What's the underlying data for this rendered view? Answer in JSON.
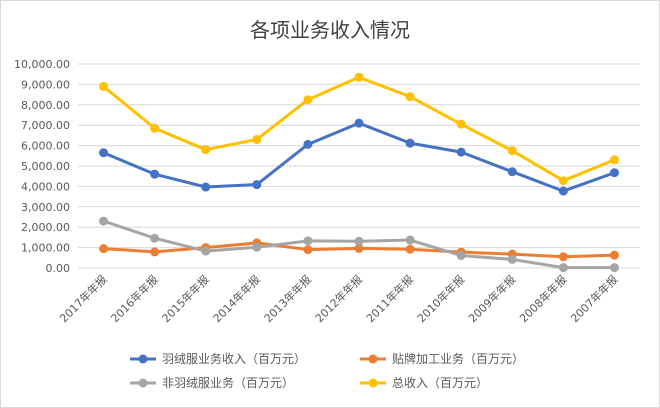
{
  "chart_data": {
    "type": "line",
    "title": "各项业务收入情况",
    "xlabel": "",
    "ylabel": "",
    "categories": [
      "2017年年报",
      "2016年年报",
      "2015年年报",
      "2014年年报",
      "2013年年报",
      "2012年年报",
      "2011年年报",
      "2010年年报",
      "2009年年报",
      "2008年年报",
      "2007年年报"
    ],
    "ylim": [
      0,
      10000
    ],
    "yticks": [
      "0.00",
      "1,000.00",
      "2,000.00",
      "3,000.00",
      "4,000.00",
      "5,000.00",
      "6,000.00",
      "7,000.00",
      "8,000.00",
      "9,000.00",
      "10,000.00"
    ],
    "grid": true,
    "legend_position": "bottom",
    "series": [
      {
        "name": "羽绒服业务收入（百万元）",
        "color": "#4472c4",
        "values": [
          5650,
          4600,
          3970,
          4090,
          6060,
          7100,
          6120,
          5680,
          4720,
          3770,
          4670
        ]
      },
      {
        "name": "贴牌加工业务（百万元）",
        "color": "#ed7d31",
        "values": [
          950,
          790,
          1000,
          1230,
          900,
          960,
          920,
          780,
          680,
          550,
          630
        ]
      },
      {
        "name": "非羽绒服业务（百万元）",
        "color": "#a5a5a5",
        "values": [
          2300,
          1460,
          830,
          1020,
          1330,
          1310,
          1370,
          610,
          420,
          20,
          20
        ]
      },
      {
        "name": "总收入（百万元）",
        "color": "#ffc000",
        "values": [
          8900,
          6850,
          5800,
          6300,
          8250,
          9350,
          8400,
          7050,
          5750,
          4280,
          5300
        ]
      }
    ]
  }
}
